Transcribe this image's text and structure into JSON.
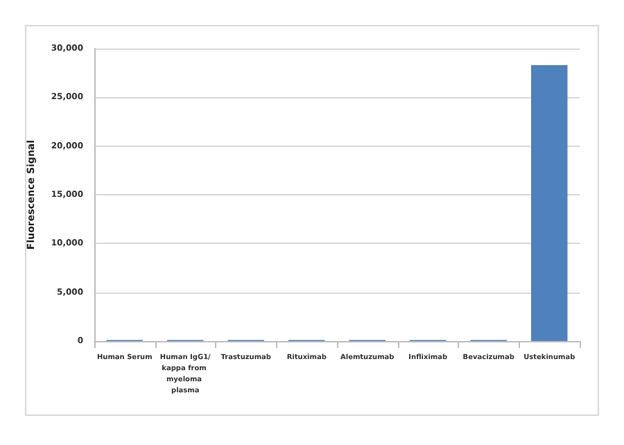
{
  "chart_data": {
    "type": "bar",
    "categories": [
      "Human Serum",
      "Human IgG1/kappa from myeloma plasma",
      "Trastuzumab",
      "Rituximab",
      "Alemtuzumab",
      "Infliximab",
      "Bevacizumab",
      "Ustekinumab"
    ],
    "values": [
      100,
      100,
      100,
      100,
      100,
      100,
      100,
      28300
    ],
    "color": "#4f81bd",
    "ylabel": "Fluorescence Signal",
    "ylim": [
      0,
      30000
    ],
    "yticks": [
      0,
      {
        "value": 5000,
        "label": "5,000"
      },
      {
        "value": 10000,
        "label": "10,000"
      },
      {
        "value": 15000,
        "label": "15,000"
      },
      {
        "value": 20000,
        "label": "20,000"
      },
      {
        "value": 25000,
        "label": "25,000"
      },
      {
        "value": 30000,
        "label": "30,000"
      }
    ],
    "grid": "y"
  }
}
